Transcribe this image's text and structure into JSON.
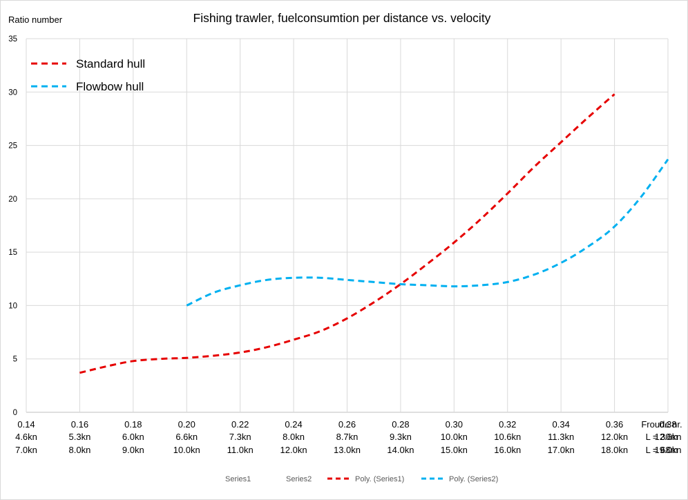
{
  "chart_data": {
    "type": "line",
    "title": "Fishing trawler, fuelconsumtion per distance vs. velocity",
    "ylabel": "Ratio number",
    "ylim": [
      0,
      35
    ],
    "yticks": [
      "0",
      "5",
      "10",
      "15",
      "20",
      "25",
      "30",
      "35"
    ],
    "xlim": [
      0.14,
      0.38
    ],
    "categories": [
      "0.14",
      "0.16",
      "0.18",
      "0.20",
      "0.22",
      "0.24",
      "0.26",
      "0.28",
      "0.30",
      "0.32",
      "0.34",
      "0.36",
      "0.38"
    ],
    "x_row2": [
      "4.6kn",
      "5.3kn",
      "6.0kn",
      "6.6kn",
      "7.3kn",
      "8.0kn",
      "8.7kn",
      "9.3kn",
      "10.0kn",
      "10.6kn",
      "11.3kn",
      "12.0kn",
      "12.6kn"
    ],
    "x_row3": [
      "7.0kn",
      "8.0kn",
      "9.0kn",
      "10.0kn",
      "11.0kn",
      "12.0kn",
      "13.0kn",
      "14.0kn",
      "15.0kn",
      "16.0kn",
      "17.0kn",
      "18.0kn",
      "19.0kn"
    ],
    "x_row_labels": [
      "Froude nr.",
      "L = 30m",
      "L = 68m"
    ],
    "grid": true,
    "series": [
      {
        "name": "Standard hull",
        "color": "#e60000",
        "x": [
          0.16,
          0.17,
          0.18,
          0.19,
          0.2,
          0.21,
          0.22,
          0.23,
          0.24,
          0.25,
          0.26,
          0.27,
          0.28,
          0.29,
          0.3,
          0.31,
          0.32,
          0.33,
          0.34,
          0.35,
          0.36
        ],
        "values": [
          3.7,
          4.3,
          4.8,
          5.0,
          5.1,
          5.3,
          5.6,
          6.1,
          6.8,
          7.6,
          8.8,
          10.3,
          12.0,
          13.9,
          15.9,
          18.1,
          20.5,
          23.0,
          25.3,
          27.6,
          29.8
        ]
      },
      {
        "name": "Flowbow hull",
        "color": "#00b0f0",
        "x": [
          0.2,
          0.21,
          0.22,
          0.23,
          0.24,
          0.25,
          0.26,
          0.27,
          0.28,
          0.29,
          0.3,
          0.31,
          0.32,
          0.33,
          0.34,
          0.35,
          0.36,
          0.37,
          0.38
        ],
        "values": [
          10.0,
          11.2,
          11.9,
          12.4,
          12.6,
          12.6,
          12.4,
          12.2,
          12.0,
          11.9,
          11.8,
          11.9,
          12.2,
          12.9,
          14.0,
          15.5,
          17.4,
          20.2,
          23.7
        ]
      }
    ],
    "legend": {
      "placement": "top-left",
      "entries": [
        "Standard hull",
        "Flowbow hull"
      ]
    },
    "bottom_legend": {
      "placement": "bottom",
      "entries": [
        "Series1",
        "Series2",
        "Poly. (Series1)",
        "Poly. (Series2)"
      ]
    }
  }
}
